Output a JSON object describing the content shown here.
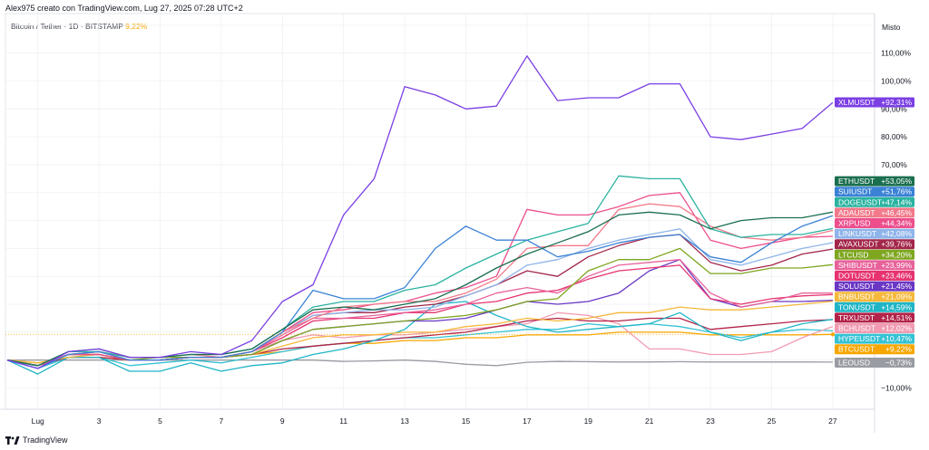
{
  "header": {
    "author_line": "Alex975 creato con TradingView.com, Lug 27, 2025 07:28 UTC+2",
    "symbol_line": "Bitcoin / Tether · 1D · BITSTAMP",
    "symbol_change": "9,22%"
  },
  "scale_mode": "Misto",
  "footer": {
    "brand": "TradingView",
    "logo_icon": "tradingview-logo-icon"
  },
  "chart_data": {
    "type": "line",
    "x": [
      0,
      1,
      2,
      3,
      4,
      5,
      6,
      7,
      8,
      9,
      10,
      11,
      12,
      13,
      14,
      15,
      16,
      17,
      18,
      19,
      20,
      21,
      22,
      23,
      24,
      25,
      26,
      27
    ],
    "x_ticks": [
      {
        "x": 1,
        "label": "Lug"
      },
      {
        "x": 3,
        "label": "3"
      },
      {
        "x": 5,
        "label": "5"
      },
      {
        "x": 7,
        "label": "7"
      },
      {
        "x": 9,
        "label": "9"
      },
      {
        "x": 11,
        "label": "11"
      },
      {
        "x": 13,
        "label": "13"
      },
      {
        "x": 15,
        "label": "15"
      },
      {
        "x": 17,
        "label": "17"
      },
      {
        "x": 19,
        "label": "19"
      },
      {
        "x": 21,
        "label": "21"
      },
      {
        "x": 23,
        "label": "23"
      },
      {
        "x": 25,
        "label": "25"
      },
      {
        "x": 27,
        "label": "27"
      }
    ],
    "y_ticks": [
      {
        "v": 110,
        "label": "110,00%"
      },
      {
        "v": 100,
        "label": "100,00%"
      },
      {
        "v": 90,
        "label": "90,00%"
      },
      {
        "v": 80,
        "label": "80,00%"
      },
      {
        "v": 70,
        "label": "70,00%"
      },
      {
        "v": -10,
        "label": "−10,00%"
      }
    ],
    "ylim": [
      -18,
      124
    ],
    "grid": true,
    "series": [
      {
        "name": "XLMUSDT",
        "label": "+92,31%",
        "last": 92.31,
        "color": "#7b3fe4",
        "values": [
          0,
          -3,
          3,
          4,
          1,
          1,
          3,
          2,
          7,
          21,
          27,
          52,
          65,
          98,
          95,
          90,
          91,
          109,
          93,
          94,
          94,
          99,
          99,
          80,
          79,
          81,
          83,
          92.31
        ]
      },
      {
        "name": "ETHUSDT",
        "label": "+53,05%",
        "last": 53.05,
        "color": "#1a6f4f",
        "values": [
          0,
          -2,
          3,
          4,
          1,
          1,
          2,
          2,
          4,
          11,
          18,
          19,
          18,
          20,
          22,
          27,
          33,
          38,
          42,
          46,
          52,
          53,
          52,
          47,
          50,
          51,
          51,
          53.05
        ]
      },
      {
        "name": "SUIUSDT",
        "label": "+51,76%",
        "last": 51.76,
        "color": "#3b82d6",
        "values": [
          0,
          -3,
          2,
          3,
          0,
          0,
          1,
          1,
          3,
          10,
          25,
          22,
          22,
          26,
          40,
          48,
          43,
          43,
          37,
          39,
          42,
          44,
          45,
          37,
          35,
          42,
          48,
          51.76
        ]
      },
      {
        "name": "DOGEUSDT",
        "label": "+47,14%",
        "last": 47.14,
        "color": "#2ab3a0",
        "values": [
          0,
          -2,
          3,
          3,
          1,
          1,
          2,
          2,
          4,
          11,
          19,
          21,
          21,
          25,
          27,
          33,
          38,
          43,
          46,
          49,
          66,
          65,
          65,
          47,
          44,
          45,
          45,
          47.14
        ]
      },
      {
        "name": "ADAUSDT",
        "label": "+46,45%",
        "last": 46.45,
        "color": "#f27a8a",
        "values": [
          0,
          -2,
          2,
          3,
          1,
          1,
          2,
          1,
          3,
          10,
          15,
          19,
          20,
          21,
          21,
          24,
          29,
          40,
          41,
          41,
          54,
          56,
          55,
          48,
          44,
          43,
          44,
          46.45
        ]
      },
      {
        "name": "XRPUSD",
        "label": "+44,34%",
        "last": 44.34,
        "color": "#ec4f8c",
        "values": [
          0,
          -2,
          2,
          2,
          0,
          0,
          1,
          1,
          3,
          10,
          17,
          18,
          20,
          21,
          24,
          26,
          30,
          54,
          52,
          52,
          55,
          59,
          60,
          43,
          40,
          42,
          44,
          44.34
        ]
      },
      {
        "name": "LINKUSDT",
        "label": "+42,08%",
        "last": 42.08,
        "color": "#8fb4ea",
        "values": [
          0,
          -2,
          2,
          3,
          1,
          1,
          2,
          1,
          3,
          10,
          16,
          17,
          18,
          18,
          19,
          23,
          27,
          34,
          36,
          40,
          43,
          45,
          47,
          36,
          34,
          37,
          40,
          42.08
        ]
      },
      {
        "name": "AVAXUSDT",
        "label": "+39,76%",
        "last": 39.76,
        "color": "#a3264a",
        "values": [
          0,
          -2,
          2,
          3,
          0,
          0,
          1,
          1,
          3,
          10,
          16,
          17,
          17,
          19,
          20,
          23,
          27,
          32,
          30,
          37,
          41,
          44,
          45,
          35,
          32,
          34,
          38,
          39.76
        ]
      },
      {
        "name": "LTCUSD",
        "label": "+34,20%",
        "last": 34.2,
        "color": "#7ea61f",
        "values": [
          0,
          -2,
          2,
          2,
          0,
          1,
          1,
          1,
          2,
          7,
          11,
          12,
          13,
          14,
          15,
          16,
          18,
          21,
          22,
          32,
          36,
          36,
          40,
          31,
          31,
          33,
          33,
          34.2
        ]
      },
      {
        "name": "SHIBUSDT",
        "label": "+23,99%",
        "last": 23.99,
        "color": "#e8629a",
        "values": [
          0,
          -2,
          2,
          2,
          0,
          0,
          1,
          1,
          3,
          9,
          15,
          15,
          16,
          17,
          18,
          20,
          24,
          26,
          24,
          30,
          34,
          35,
          36,
          24,
          19,
          21,
          24,
          23.99
        ]
      },
      {
        "name": "DOTUSDT",
        "label": "+23,46%",
        "last": 23.46,
        "color": "#e6336f",
        "values": [
          0,
          -2,
          2,
          2,
          0,
          0,
          1,
          1,
          3,
          8,
          14,
          15,
          15,
          17,
          17,
          20,
          21,
          24,
          25,
          29,
          32,
          33,
          34,
          22,
          20,
          22,
          23,
          23.46
        ]
      },
      {
        "name": "SOLUSDT",
        "label": "+21,45%",
        "last": 21.45,
        "color": "#6a37c4",
        "values": [
          0,
          -2,
          2,
          2,
          0,
          0,
          1,
          1,
          2,
          7,
          11,
          12,
          13,
          14,
          14,
          15,
          18,
          21,
          20,
          21,
          24,
          32,
          36,
          22,
          19,
          21,
          21,
          21.45
        ]
      },
      {
        "name": "BNBUSDT",
        "label": "+21,09%",
        "last": 21.09,
        "color": "#f5b83a",
        "values": [
          0,
          -1,
          1,
          2,
          0,
          0,
          1,
          1,
          2,
          5,
          8,
          9,
          9,
          10,
          10,
          12,
          13,
          15,
          14,
          15,
          17,
          17,
          19,
          18,
          18,
          19,
          20,
          21.09
        ]
      },
      {
        "name": "TONUSDT",
        "label": "+14,59%",
        "last": 14.59,
        "color": "#1fb5c6",
        "values": [
          0,
          -5,
          1,
          1,
          -4,
          -4,
          -1,
          -4,
          -2,
          -1,
          2,
          4,
          7,
          11,
          20,
          21,
          16,
          12,
          10,
          11,
          12,
          13,
          17,
          10,
          7,
          10,
          13,
          14.59
        ]
      },
      {
        "name": "TRXUSDT",
        "label": "+14,51%",
        "last": 14.51,
        "color": "#b2234a",
        "values": [
          0,
          -2,
          1,
          1,
          0,
          0,
          1,
          1,
          2,
          4,
          5,
          6,
          7,
          8,
          9,
          10,
          12,
          14,
          15,
          14,
          14,
          15,
          15,
          11,
          12,
          13,
          14,
          14.51
        ]
      },
      {
        "name": "BCHUSDT",
        "label": "+12,02%",
        "last": 12.02,
        "color": "#f19bb2",
        "values": [
          0,
          -2,
          2,
          2,
          0,
          0,
          1,
          1,
          3,
          7,
          9,
          8,
          9,
          9,
          10,
          11,
          12,
          13,
          17,
          16,
          13,
          4,
          4,
          2,
          2,
          3,
          8,
          12.02
        ]
      },
      {
        "name": "HYPEUSDT",
        "label": "+10,47%",
        "last": 10.47,
        "color": "#35c2d4",
        "values": [
          0,
          -3,
          1,
          1,
          -2,
          -1,
          0,
          -1,
          1,
          3,
          5,
          6,
          7,
          8,
          8,
          9,
          10,
          11,
          11,
          13,
          12,
          13,
          12,
          10,
          8,
          10,
          11,
          10.47
        ]
      },
      {
        "name": "BTCUSDT",
        "label": "+9,22%",
        "last": 9.22,
        "color": "#f7a600",
        "values": [
          0,
          -1,
          1,
          1,
          0,
          0,
          1,
          1,
          2,
          3,
          5,
          6,
          6,
          7,
          7,
          8,
          8,
          9,
          9,
          9,
          10,
          10,
          10,
          9,
          9,
          9,
          9,
          9.22
        ]
      },
      {
        "name": "LEOUSD",
        "label": "−0,73%",
        "last": -0.73,
        "color": "#9a9ca3",
        "values": [
          0,
          0,
          0,
          0,
          0,
          0,
          0,
          0,
          0,
          0,
          0,
          -0.5,
          -0.3,
          0,
          -0.5,
          -1.5,
          -2,
          -0.8,
          -0.5,
          -0.6,
          -0.7,
          -0.7,
          -0.6,
          -0.7,
          -0.7,
          -0.7,
          -0.7,
          -0.73
        ]
      }
    ],
    "badge_stack": [
      "XLMUSDT",
      "ETHUSDT",
      "SUIUSDT",
      "DOGEUSDT",
      "ADAUSDT",
      "XRPUSD",
      "LINKUSDT",
      "AVAXUSDT",
      "LTCUSD",
      "SHIBUSDT",
      "DOTUSDT",
      "SOLUSDT",
      "BNBUSDT",
      "TONUSDT",
      "TRXUSDT",
      "BCHUSDT",
      "HYPEUSDT",
      "BTCUSDT",
      "LEOUSD"
    ]
  }
}
